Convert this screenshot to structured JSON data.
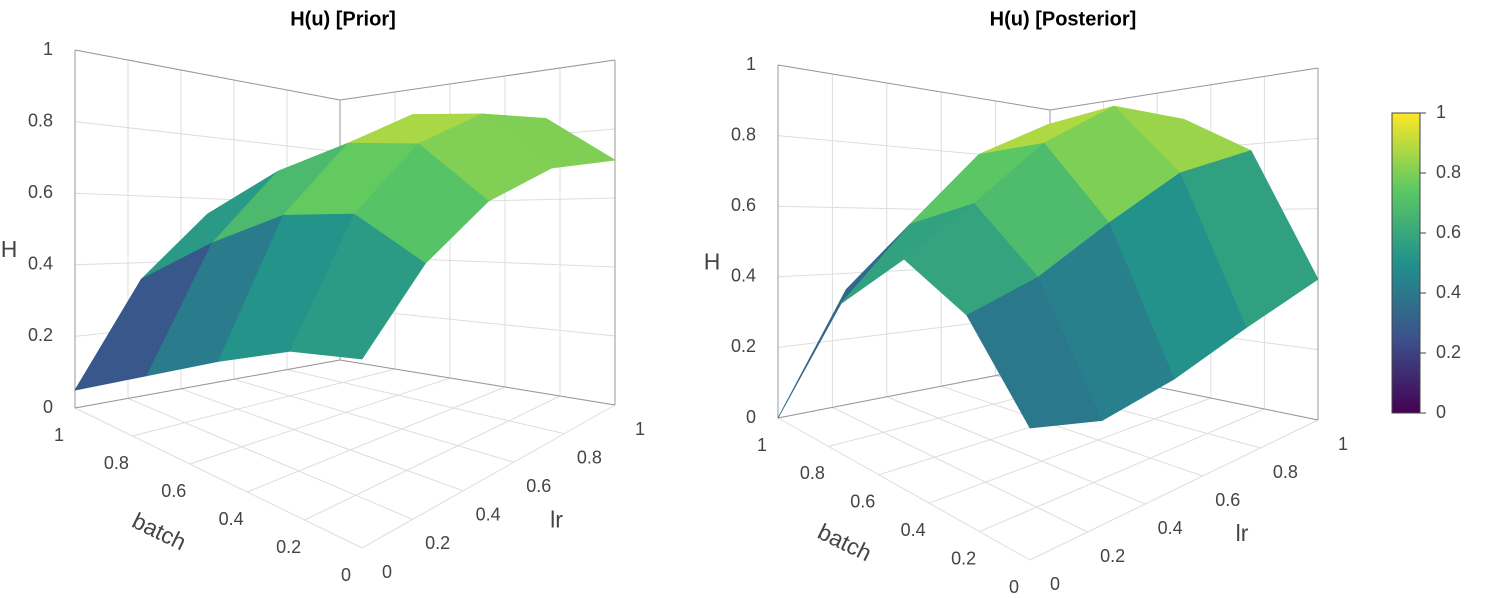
{
  "chart_data": [
    {
      "type": "surface",
      "title": "H(u) [Prior]",
      "xlabel": "lr",
      "ylabel": "batch",
      "zlabel": "H",
      "x": [
        0,
        0.25,
        0.5,
        0.75,
        1
      ],
      "y": [
        0,
        0.25,
        0.5,
        0.75,
        1
      ],
      "z": [
        [
          0.45,
          0.62,
          0.72,
          0.75,
          0.71
        ],
        [
          0.4,
          0.7,
          0.85,
          0.9,
          0.85
        ],
        [
          0.3,
          0.65,
          0.83,
          0.9,
          0.86
        ],
        [
          0.18,
          0.52,
          0.72,
          0.8,
          0.78
        ],
        [
          0.05,
          0.35,
          0.55,
          0.63,
          0.62
        ]
      ],
      "xlim": [
        0,
        1
      ],
      "ylim": [
        0,
        1
      ],
      "zlim": [
        0,
        1
      ],
      "xticks": [
        0,
        0.2,
        0.4,
        0.6,
        0.8,
        1
      ],
      "yticks": [
        0,
        0.2,
        0.4,
        0.6,
        0.8,
        1
      ],
      "zticks": [
        0,
        0.2,
        0.4,
        0.6,
        0.8,
        1
      ],
      "colorscale": [
        "#440154",
        "#3b528b",
        "#21918c",
        "#5ec962",
        "#fde725"
      ],
      "grid": true
    },
    {
      "type": "surface",
      "title": "H(u) [Posterior]",
      "xlabel": "lr",
      "ylabel": "batch",
      "zlabel": "H",
      "x": [
        0,
        0.25,
        0.5,
        0.75,
        1
      ],
      "y": [
        0,
        0.25,
        0.5,
        0.75,
        1
      ],
      "z": [
        [
          0.3,
          0.25,
          0.28,
          0.34,
          0.4
        ],
        [
          0.5,
          0.55,
          0.65,
          0.75,
          0.78
        ],
        [
          0.58,
          0.7,
          0.85,
          0.95,
          0.9
        ],
        [
          0.4,
          0.6,
          0.8,
          0.9,
          0.82
        ],
        [
          0.0,
          0.35,
          0.55,
          0.65,
          0.6
        ]
      ],
      "xlim": [
        0,
        1
      ],
      "ylim": [
        0,
        1
      ],
      "zlim": [
        0,
        1
      ],
      "xticks": [
        0,
        0.2,
        0.4,
        0.6,
        0.8,
        1
      ],
      "yticks": [
        0,
        0.2,
        0.4,
        0.6,
        0.8,
        1
      ],
      "zticks": [
        0,
        0.2,
        0.4,
        0.6,
        0.8,
        1
      ],
      "colorscale": [
        "#440154",
        "#3b528b",
        "#21918c",
        "#5ec962",
        "#fde725"
      ],
      "grid": true,
      "colorbar": {
        "lim": [
          0,
          1
        ],
        "ticks": [
          0,
          0.2,
          0.4,
          0.6,
          0.8,
          1
        ]
      }
    }
  ]
}
